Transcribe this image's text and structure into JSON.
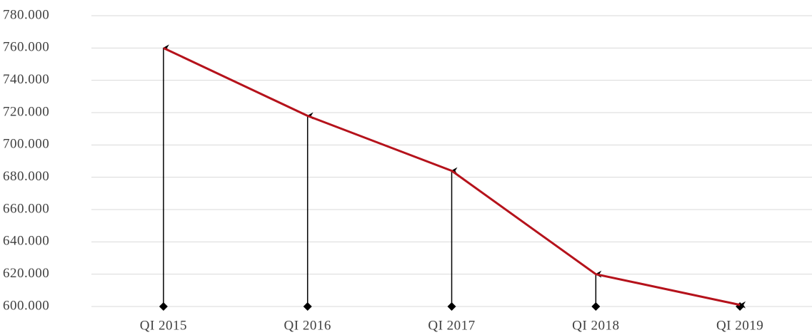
{
  "chart_data": {
    "type": "line",
    "categories": [
      "QI 2015",
      "QI 2016",
      "QI 2017",
      "QI 2018",
      "QI 2019"
    ],
    "values": [
      760000,
      718000,
      684000,
      620000,
      601000
    ],
    "color": "#b5121b",
    "drop_arrows": true,
    "ylim": [
      600000,
      780000
    ],
    "yticks": [
      {
        "value": 600000,
        "label": "600.000"
      },
      {
        "value": 620000,
        "label": "620.000"
      },
      {
        "value": 640000,
        "label": "640.000"
      },
      {
        "value": 660000,
        "label": "660.000"
      },
      {
        "value": 680000,
        "label": "680.000"
      },
      {
        "value": 700000,
        "label": "700.000"
      },
      {
        "value": 720000,
        "label": "720.000"
      },
      {
        "value": 740000,
        "label": "740.000"
      },
      {
        "value": 760000,
        "label": "760.000"
      },
      {
        "value": 780000,
        "label": "780.000"
      }
    ],
    "grid": true
  }
}
